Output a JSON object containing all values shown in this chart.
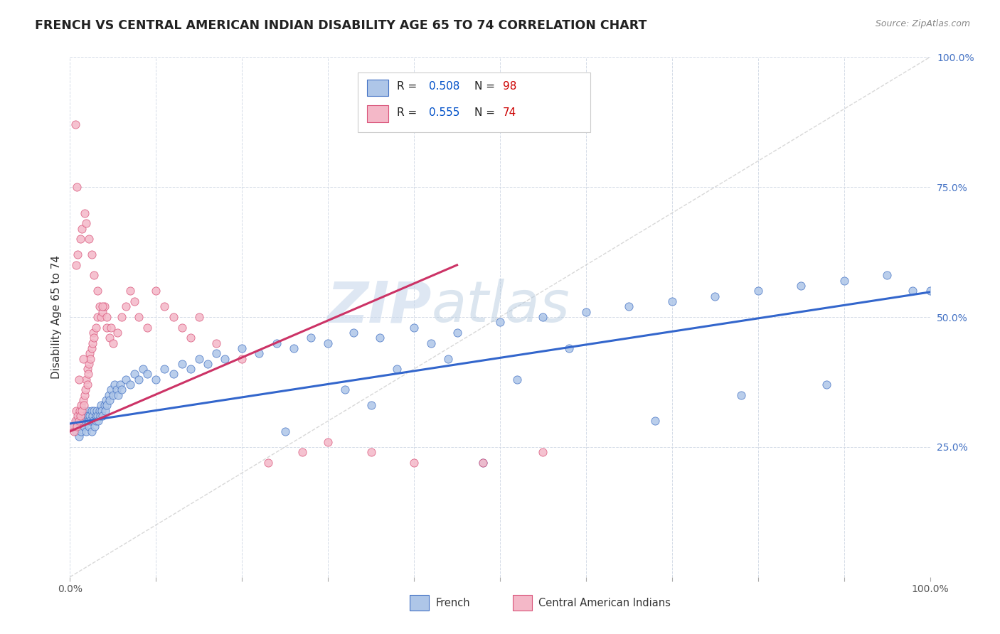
{
  "title": "FRENCH VS CENTRAL AMERICAN INDIAN DISABILITY AGE 65 TO 74 CORRELATION CHART",
  "source": "Source: ZipAtlas.com",
  "ylabel": "Disability Age 65 to 74",
  "watermark_zip": "ZIP",
  "watermark_atlas": "atlas",
  "xlim": [
    0.0,
    1.0
  ],
  "ylim": [
    0.0,
    1.0
  ],
  "yticks": [
    0.0,
    0.25,
    0.5,
    0.75,
    1.0
  ],
  "ytick_labels": [
    "",
    "25.0%",
    "50.0%",
    "75.0%",
    "100.0%"
  ],
  "xticks": [
    0.0,
    0.1,
    0.2,
    0.3,
    0.4,
    0.5,
    0.6,
    0.7,
    0.8,
    0.9,
    1.0
  ],
  "xtick_labels": [
    "0.0%",
    "",
    "",
    "",
    "",
    "",
    "",
    "",
    "",
    "",
    "100.0%"
  ],
  "legend_r1": "R = 0.508",
  "legend_n1": "N = 98",
  "legend_r2": "R = 0.555",
  "legend_n2": "N = 74",
  "french_fill_color": "#aec6e8",
  "french_edge_color": "#4472c4",
  "central_fill_color": "#f4b8c8",
  "central_edge_color": "#d9547a",
  "french_line_color": "#3366cc",
  "central_line_color": "#cc3366",
  "diagonal_color": "#c8c8c8",
  "background_color": "#ffffff",
  "grid_color": "#d0d8e4",
  "title_color": "#222222",
  "source_color": "#888888",
  "ylabel_color": "#333333",
  "tick_color_y": "#4472c4",
  "tick_color_x": "#555555",
  "legend_text_color": "#222222",
  "legend_r_color": "#0050c8",
  "legend_n_color": "#cc0000",
  "title_fontsize": 12.5,
  "source_fontsize": 9,
  "axis_label_fontsize": 11,
  "tick_fontsize": 10,
  "legend_fontsize": 11,
  "watermark_fontsize_zip": 58,
  "watermark_fontsize_atlas": 58,
  "french_x": [
    0.005,
    0.007,
    0.008,
    0.01,
    0.01,
    0.012,
    0.013,
    0.015,
    0.015,
    0.016,
    0.017,
    0.018,
    0.019,
    0.02,
    0.02,
    0.021,
    0.022,
    0.022,
    0.023,
    0.024,
    0.025,
    0.025,
    0.026,
    0.027,
    0.028,
    0.029,
    0.03,
    0.03,
    0.031,
    0.032,
    0.033,
    0.034,
    0.035,
    0.036,
    0.037,
    0.038,
    0.04,
    0.041,
    0.042,
    0.043,
    0.045,
    0.046,
    0.048,
    0.05,
    0.052,
    0.054,
    0.056,
    0.058,
    0.06,
    0.065,
    0.07,
    0.075,
    0.08,
    0.085,
    0.09,
    0.1,
    0.11,
    0.12,
    0.13,
    0.14,
    0.15,
    0.16,
    0.17,
    0.18,
    0.2,
    0.22,
    0.24,
    0.26,
    0.28,
    0.3,
    0.33,
    0.36,
    0.4,
    0.45,
    0.5,
    0.55,
    0.6,
    0.65,
    0.7,
    0.75,
    0.8,
    0.85,
    0.9,
    0.95,
    1.0,
    0.25,
    0.35,
    0.42,
    0.48,
    0.32,
    0.38,
    0.44,
    0.52,
    0.58,
    0.68,
    0.78,
    0.88,
    0.98
  ],
  "french_y": [
    0.29,
    0.28,
    0.3,
    0.27,
    0.31,
    0.29,
    0.28,
    0.3,
    0.32,
    0.29,
    0.31,
    0.3,
    0.28,
    0.3,
    0.32,
    0.31,
    0.3,
    0.29,
    0.31,
    0.3,
    0.32,
    0.28,
    0.31,
    0.3,
    0.32,
    0.29,
    0.31,
    0.3,
    0.32,
    0.31,
    0.3,
    0.32,
    0.31,
    0.33,
    0.32,
    0.31,
    0.33,
    0.32,
    0.34,
    0.33,
    0.35,
    0.34,
    0.36,
    0.35,
    0.37,
    0.36,
    0.35,
    0.37,
    0.36,
    0.38,
    0.37,
    0.39,
    0.38,
    0.4,
    0.39,
    0.38,
    0.4,
    0.39,
    0.41,
    0.4,
    0.42,
    0.41,
    0.43,
    0.42,
    0.44,
    0.43,
    0.45,
    0.44,
    0.46,
    0.45,
    0.47,
    0.46,
    0.48,
    0.47,
    0.49,
    0.5,
    0.51,
    0.52,
    0.53,
    0.54,
    0.55,
    0.56,
    0.57,
    0.58,
    0.55,
    0.28,
    0.33,
    0.45,
    0.22,
    0.36,
    0.4,
    0.42,
    0.38,
    0.44,
    0.3,
    0.35,
    0.37,
    0.55
  ],
  "central_x": [
    0.003,
    0.005,
    0.006,
    0.007,
    0.008,
    0.009,
    0.01,
    0.011,
    0.012,
    0.013,
    0.014,
    0.015,
    0.016,
    0.017,
    0.018,
    0.019,
    0.02,
    0.02,
    0.021,
    0.022,
    0.023,
    0.024,
    0.025,
    0.026,
    0.027,
    0.028,
    0.03,
    0.032,
    0.034,
    0.036,
    0.038,
    0.04,
    0.043,
    0.046,
    0.05,
    0.055,
    0.06,
    0.065,
    0.07,
    0.075,
    0.08,
    0.09,
    0.1,
    0.11,
    0.12,
    0.13,
    0.14,
    0.15,
    0.17,
    0.2,
    0.23,
    0.27,
    0.3,
    0.35,
    0.4,
    0.007,
    0.009,
    0.012,
    0.014,
    0.017,
    0.019,
    0.022,
    0.025,
    0.028,
    0.032,
    0.038,
    0.043,
    0.048,
    0.01,
    0.015,
    0.008,
    0.006,
    0.55,
    0.48
  ],
  "central_y": [
    0.29,
    0.28,
    0.3,
    0.32,
    0.29,
    0.31,
    0.3,
    0.32,
    0.31,
    0.33,
    0.32,
    0.34,
    0.33,
    0.35,
    0.36,
    0.38,
    0.37,
    0.4,
    0.39,
    0.41,
    0.43,
    0.42,
    0.44,
    0.45,
    0.47,
    0.46,
    0.48,
    0.5,
    0.52,
    0.5,
    0.51,
    0.52,
    0.48,
    0.46,
    0.45,
    0.47,
    0.5,
    0.52,
    0.55,
    0.53,
    0.5,
    0.48,
    0.55,
    0.52,
    0.5,
    0.48,
    0.46,
    0.5,
    0.45,
    0.42,
    0.22,
    0.24,
    0.26,
    0.24,
    0.22,
    0.6,
    0.62,
    0.65,
    0.67,
    0.7,
    0.68,
    0.65,
    0.62,
    0.58,
    0.55,
    0.52,
    0.5,
    0.48,
    0.38,
    0.42,
    0.75,
    0.87,
    0.24,
    0.22
  ],
  "blue_line_x0": 0.0,
  "blue_line_y0": 0.295,
  "blue_line_x1": 1.0,
  "blue_line_y1": 0.548,
  "pink_line_x0": 0.0,
  "pink_line_y0": 0.28,
  "pink_line_x1": 0.45,
  "pink_line_y1": 0.6
}
